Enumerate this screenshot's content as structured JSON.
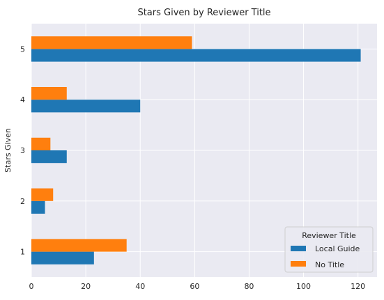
{
  "chart_data": {
    "type": "bar",
    "orientation": "horizontal",
    "title": "Stars Given by Reviewer Title",
    "xlabel": "",
    "ylabel": "Stars Given",
    "categories": [
      "1",
      "2",
      "3",
      "4",
      "5"
    ],
    "series": [
      {
        "name": "Local Guide",
        "values": [
          23,
          5,
          13,
          40,
          121
        ],
        "color": "#1f77b4"
      },
      {
        "name": "No Title",
        "values": [
          35,
          8,
          7,
          13,
          59
        ],
        "color": "#ff7f0e"
      }
    ],
    "xlim": [
      0,
      127
    ],
    "xticks": [
      0,
      20,
      40,
      60,
      80,
      100,
      120
    ],
    "grid": true,
    "legend": {
      "title": "Reviewer Title",
      "position": "lower-right"
    }
  },
  "colors": {
    "plot_background": "#eaeaf2",
    "grid": "#ffffff"
  }
}
